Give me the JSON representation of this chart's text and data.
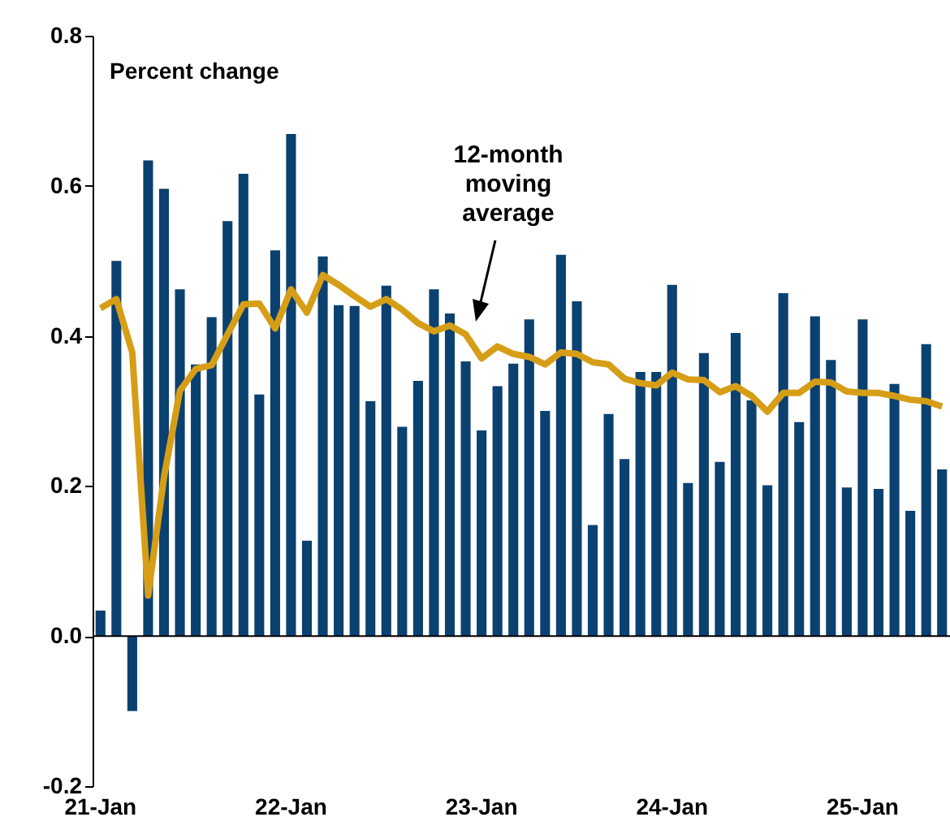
{
  "chart_data": {
    "type": "bar",
    "ylabel": "Percent change",
    "categories": [
      "21-Jan",
      null,
      null,
      null,
      null,
      null,
      null,
      null,
      null,
      null,
      null,
      null,
      "22-Jan",
      null,
      null,
      null,
      null,
      null,
      null,
      null,
      null,
      null,
      null,
      null,
      "23-Jan",
      null,
      null,
      null,
      null,
      null,
      null,
      null,
      null,
      null,
      null,
      null,
      "24-Jan",
      null,
      null,
      null,
      null,
      null,
      null,
      null,
      null,
      null,
      null,
      null,
      "25-Jan",
      null,
      null,
      null,
      null,
      null
    ],
    "series": [
      {
        "color": "#0b4170",
        "values": [
          0.034,
          0.5,
          -0.1,
          0.634,
          0.596,
          0.462,
          0.362,
          0.425,
          0.553,
          0.616,
          0.322,
          0.514,
          0.669,
          0.127,
          0.506,
          0.441,
          0.44,
          0.313,
          0.467,
          0.279,
          0.34,
          0.462,
          0.43,
          0.366,
          0.274,
          0.333,
          0.363,
          0.422,
          0.3,
          0.508,
          0.446,
          0.148,
          0.296,
          0.236,
          0.352,
          0.352,
          0.468,
          0.204,
          0.377,
          0.232,
          0.404,
          0.314,
          0.201,
          0.457,
          0.285,
          0.426,
          0.368,
          0.198,
          0.422,
          0.196,
          0.336,
          0.167,
          0.389,
          0.222
        ]
      },
      {
        "type": "line",
        "color": "#d69e17",
        "values": [
          0.437,
          0.449,
          0.378,
          0.054,
          0.212,
          0.327,
          0.356,
          0.361,
          0.402,
          0.442,
          0.443,
          0.41,
          0.462,
          0.431,
          0.481,
          0.468,
          0.453,
          0.439,
          0.449,
          0.435,
          0.417,
          0.406,
          0.414,
          0.402,
          0.37,
          0.386,
          0.376,
          0.372,
          0.362,
          0.378,
          0.376,
          0.365,
          0.362,
          0.343,
          0.337,
          0.334,
          0.351,
          0.342,
          0.341,
          0.325,
          0.333,
          0.32,
          0.299,
          0.324,
          0.324,
          0.339,
          0.338,
          0.326,
          0.324,
          0.324,
          0.32,
          0.315,
          0.313,
          0.306
        ]
      }
    ],
    "ylim": [
      -0.2,
      0.8
    ],
    "yticks": [
      {
        "value": -0.2,
        "label": "-0.2"
      },
      {
        "value": 0,
        "label": "0.0"
      },
      {
        "value": 0.2,
        "label": "0.2"
      },
      {
        "value": 0.4,
        "label": "0.4"
      },
      {
        "value": 0.6,
        "label": "0.6"
      },
      {
        "value": 0.8,
        "label": "0.8"
      }
    ],
    "annotations": [
      "12-month moving average"
    ]
  }
}
